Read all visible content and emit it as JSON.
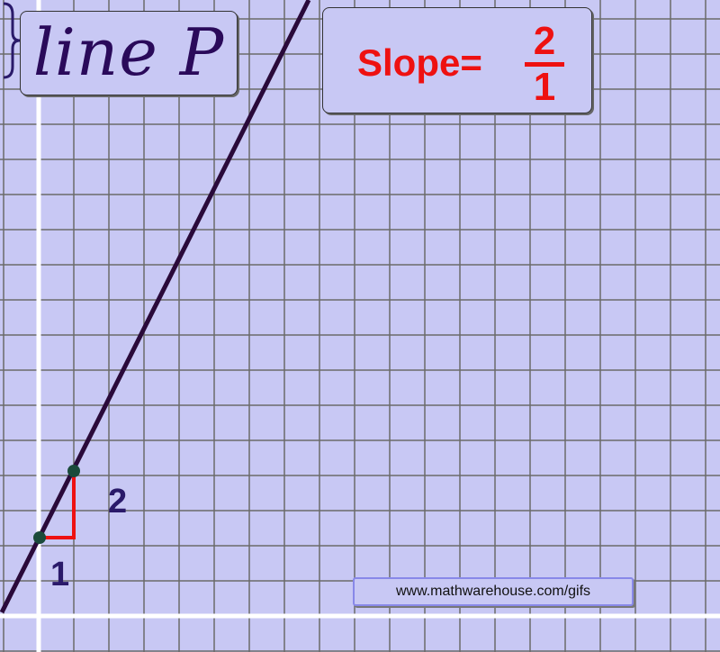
{
  "title": "line P",
  "slope": {
    "label": "Slope=",
    "numerator": "2",
    "denominator": "1"
  },
  "triangle": {
    "rise_label": "2",
    "run_label": "1"
  },
  "watermark": "www.mathwarehouse.com/gifs",
  "colors": {
    "background": "#c8c8f4",
    "grid": "#6a6a6a",
    "axis": "#ffffff",
    "line": "#2a0a3a",
    "triangle": "#ee1111",
    "points": "#1a4a3a",
    "slope_text": "#ee1111",
    "title_text": "#2a0a5a"
  }
}
